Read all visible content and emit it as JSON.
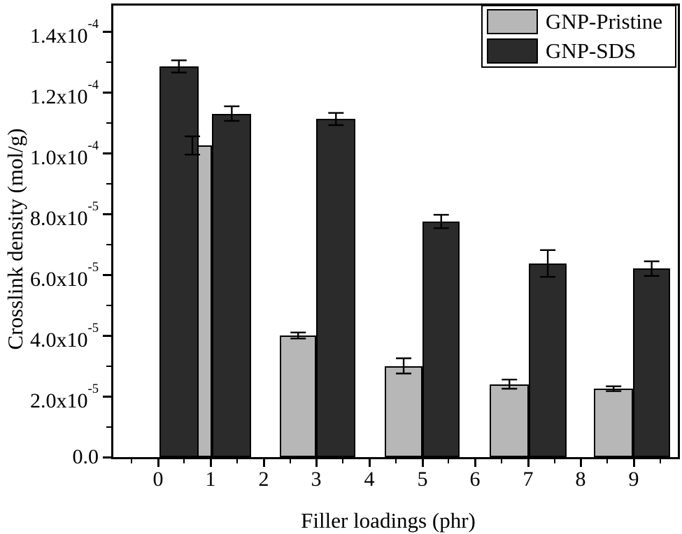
{
  "figure": {
    "background": "#ffffff",
    "axis_color": "#000000"
  },
  "chart_data": {
    "type": "bar",
    "title": "",
    "xlabel": "Filler loadings (phr)",
    "ylabel": "Crosslink density (mol/g)",
    "xlim": [
      -0.84,
      9.834
    ],
    "ylim": [
      0,
      0.00014851
    ],
    "grid": false,
    "legend_position": "top-right",
    "x_major_ticks": [
      0,
      1,
      2,
      3,
      4,
      5,
      6,
      7,
      8,
      9
    ],
    "x_minor_ticks": [
      -0.5,
      0.5,
      1.5,
      2.5,
      3.5,
      4.5,
      5.5,
      6.5,
      7.5,
      8.5,
      9.5
    ],
    "y_major_ticks": [
      0,
      2e-05,
      4e-05,
      6e-05,
      8e-05,
      0.0001,
      0.00012,
      0.00014
    ],
    "y_tick_labels": [
      "0.0",
      "2.0x10^-5",
      "4.0x10^-5",
      "6.0x10^-5",
      "8.0x10^-5",
      "1.0x10^-4",
      "1.2x10^-4",
      "1.4x10^-4"
    ],
    "y_minor_ticks": [
      1e-05,
      3e-05,
      5e-05,
      7e-05,
      9e-05,
      0.00011,
      0.00013
    ],
    "series": [
      {
        "name": "GNP-Pristine",
        "color": "#b7b7b7",
        "points": [
          {
            "x": 1,
            "value": 0.0001025,
            "error": 3e-06,
            "span": [
              0.28,
              1.03
            ]
          },
          {
            "x": 3,
            "value": 4e-05,
            "error": 1e-06,
            "span": [
              2.31,
              3.0
            ]
          },
          {
            "x": 5,
            "value": 3e-05,
            "error": 2.5e-06,
            "span": [
              4.29,
              5.01
            ]
          },
          {
            "x": 7,
            "value": 2.4e-05,
            "error": 1.5e-06,
            "span": [
              6.28,
              7.02
            ]
          },
          {
            "x": 9,
            "value": 2.25e-05,
            "error": 8e-07,
            "span": [
              8.25,
              8.99
            ]
          }
        ]
      },
      {
        "name": "GNP-SDS",
        "color": "#2b2b2b",
        "points": [
          {
            "x": 0,
            "value": 0.0001285,
            "error": 2e-06,
            "span": [
              0.03,
              0.77
            ]
          },
          {
            "x": 1,
            "value": 0.000113,
            "error": 2.4e-06,
            "span": [
              1.03,
              1.77
            ]
          },
          {
            "x": 3,
            "value": 0.0001112,
            "error": 2e-06,
            "span": [
              3.0,
              3.74
            ]
          },
          {
            "x": 5,
            "value": 7.75e-05,
            "error": 2.2e-06,
            "span": [
              5.01,
              5.71
            ]
          },
          {
            "x": 7,
            "value": 6.37e-05,
            "error": 4.4e-06,
            "span": [
              7.02,
              7.73
            ]
          },
          {
            "x": 9,
            "value": 6.2e-05,
            "error": 2.4e-06,
            "span": [
              8.99,
              9.69
            ]
          }
        ]
      }
    ]
  }
}
